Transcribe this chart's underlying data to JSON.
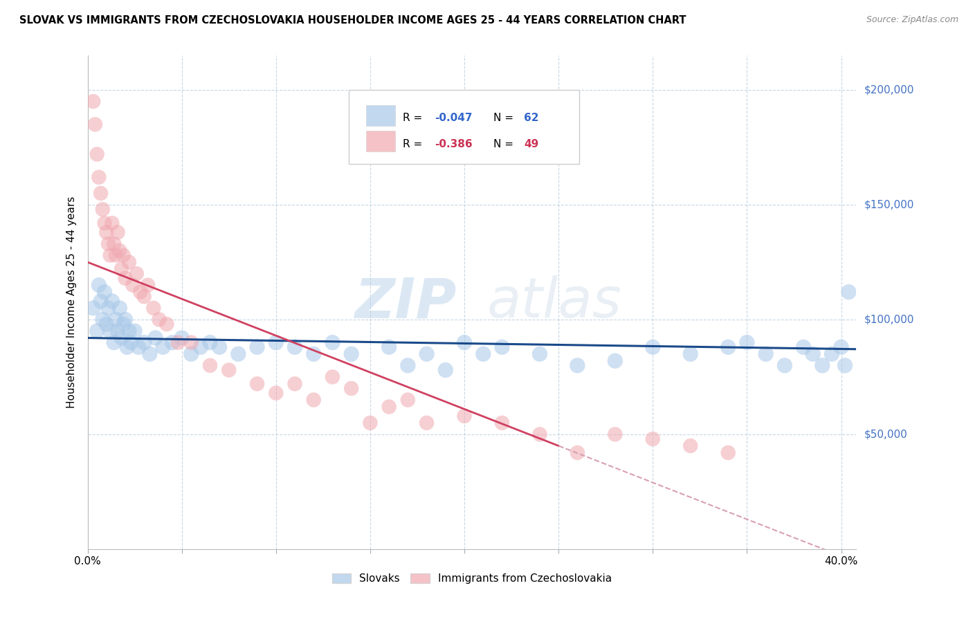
{
  "title": "SLOVAK VS IMMIGRANTS FROM CZECHOSLOVAKIA HOUSEHOLDER INCOME AGES 25 - 44 YEARS CORRELATION CHART",
  "source": "Source: ZipAtlas.com",
  "ylabel": "Householder Income Ages 25 - 44 years",
  "watermark_zip": "ZIP",
  "watermark_atlas": "atlas",
  "legend_r1": "R = -0.047",
  "legend_n1": "N = 62",
  "legend_r2": "R = -0.386",
  "legend_n2": "N = 49",
  "legend_label1": "Slovaks",
  "legend_label2": "Immigrants from Czechoslovakia",
  "blue_color": "#a8c8e8",
  "pink_color": "#f0a8b0",
  "blue_line_color": "#1a4a8a",
  "pink_line_color": "#d04060",
  "pink_dash_color": "#d8a0b0",
  "ytick_color": "#4472c4",
  "xlim": [
    0.0,
    0.408
  ],
  "ylim": [
    0,
    215000
  ],
  "yticks": [
    50000,
    100000,
    150000,
    200000
  ],
  "ytick_labels": [
    "$50,000",
    "$100,000",
    "$150,000",
    "$200,000"
  ],
  "xticks": [
    0.0,
    0.05,
    0.1,
    0.15,
    0.2,
    0.25,
    0.3,
    0.35,
    0.4
  ],
  "xtick_labels": [
    "0.0%",
    "",
    "",
    "",
    "",
    "",
    "",
    "",
    "40.0%"
  ],
  "blue_x": [
    0.003,
    0.005,
    0.006,
    0.007,
    0.008,
    0.009,
    0.01,
    0.011,
    0.012,
    0.013,
    0.014,
    0.015,
    0.016,
    0.017,
    0.018,
    0.019,
    0.02,
    0.021,
    0.022,
    0.023,
    0.025,
    0.027,
    0.03,
    0.033,
    0.036,
    0.04,
    0.045,
    0.05,
    0.055,
    0.06,
    0.065,
    0.07,
    0.08,
    0.09,
    0.1,
    0.11,
    0.12,
    0.13,
    0.14,
    0.16,
    0.17,
    0.18,
    0.19,
    0.2,
    0.21,
    0.22,
    0.24,
    0.26,
    0.28,
    0.3,
    0.32,
    0.34,
    0.35,
    0.36,
    0.37,
    0.38,
    0.385,
    0.39,
    0.395,
    0.4,
    0.402,
    0.404
  ],
  "blue_y": [
    105000,
    95000,
    115000,
    108000,
    100000,
    112000,
    98000,
    105000,
    95000,
    108000,
    90000,
    100000,
    95000,
    105000,
    92000,
    98000,
    100000,
    88000,
    95000,
    90000,
    95000,
    88000,
    90000,
    85000,
    92000,
    88000,
    90000,
    92000,
    85000,
    88000,
    90000,
    88000,
    85000,
    88000,
    90000,
    88000,
    85000,
    90000,
    85000,
    88000,
    80000,
    85000,
    78000,
    90000,
    85000,
    88000,
    85000,
    80000,
    82000,
    88000,
    85000,
    88000,
    90000,
    85000,
    80000,
    88000,
    85000,
    80000,
    85000,
    88000,
    80000,
    112000
  ],
  "pink_x": [
    0.003,
    0.004,
    0.005,
    0.006,
    0.007,
    0.008,
    0.009,
    0.01,
    0.011,
    0.012,
    0.013,
    0.014,
    0.015,
    0.016,
    0.017,
    0.018,
    0.019,
    0.02,
    0.022,
    0.024,
    0.026,
    0.028,
    0.03,
    0.032,
    0.035,
    0.038,
    0.042,
    0.048,
    0.055,
    0.065,
    0.075,
    0.09,
    0.1,
    0.11,
    0.12,
    0.13,
    0.14,
    0.15,
    0.16,
    0.17,
    0.18,
    0.2,
    0.22,
    0.24,
    0.26,
    0.28,
    0.3,
    0.32,
    0.34
  ],
  "pink_y": [
    195000,
    185000,
    172000,
    162000,
    155000,
    148000,
    142000,
    138000,
    133000,
    128000,
    142000,
    133000,
    128000,
    138000,
    130000,
    122000,
    128000,
    118000,
    125000,
    115000,
    120000,
    112000,
    110000,
    115000,
    105000,
    100000,
    98000,
    90000,
    90000,
    80000,
    78000,
    72000,
    68000,
    72000,
    65000,
    75000,
    70000,
    55000,
    62000,
    65000,
    55000,
    58000,
    55000,
    50000,
    42000,
    50000,
    48000,
    45000,
    42000
  ]
}
